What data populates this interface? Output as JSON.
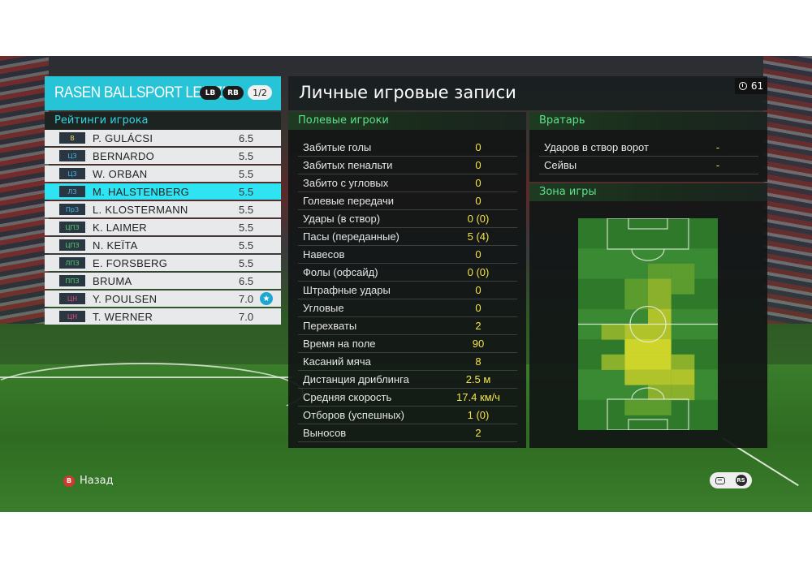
{
  "team": {
    "name": "RASEN BALLSPORT LEIPZIG",
    "lb_label": "LB",
    "rb_label": "RB",
    "page": "1/2"
  },
  "ratings_header": "Рейтинги игрока",
  "players": [
    {
      "pos": "В",
      "name": "P. GULÁCSI",
      "rating": "6.5",
      "pos_color": "#f2d24a"
    },
    {
      "pos": "ЦЗ",
      "name": "BERNARDO",
      "rating": "5.5",
      "pos_color": "#46b8e8"
    },
    {
      "pos": "ЦЗ",
      "name": "W. ORBAN",
      "rating": "5.5",
      "pos_color": "#46b8e8"
    },
    {
      "pos": "ЛЗ",
      "name": "M. HALSTENBERG",
      "rating": "5.5",
      "pos_color": "#46b8e8",
      "selected": true
    },
    {
      "pos": "ПрЗ",
      "name": "L. KLOSTERMANN",
      "rating": "5.5",
      "pos_color": "#46b8e8"
    },
    {
      "pos": "ЦПЗ",
      "name": "K. LAIMER",
      "rating": "5.5",
      "pos_color": "#4fd26a"
    },
    {
      "pos": "ЦПЗ",
      "name": "N. KEÏTA",
      "rating": "5.5",
      "pos_color": "#4fd26a"
    },
    {
      "pos": "ЛПЗ",
      "name": "E. FORSBERG",
      "rating": "5.5",
      "pos_color": "#4fd26a"
    },
    {
      "pos": "ППЗ",
      "name": "BRUMA",
      "rating": "6.5",
      "pos_color": "#4fd26a"
    },
    {
      "pos": "ЦН",
      "name": "Y. POULSEN",
      "rating": "7.0",
      "pos_color": "#e54a7a",
      "star": true
    },
    {
      "pos": "ЦН",
      "name": "T. WERNER",
      "rating": "7.0",
      "pos_color": "#e54a7a"
    }
  ],
  "main": {
    "title": "Личные игровые записи",
    "timer": "61"
  },
  "field_players": {
    "header": "Полевые игроки",
    "stats": [
      {
        "label": "Забитые голы",
        "value": "0"
      },
      {
        "label": "Забитых пенальти",
        "value": "0"
      },
      {
        "label": "Забито с угловых",
        "value": "0"
      },
      {
        "label": "Голевые передачи",
        "value": "0"
      },
      {
        "label": "Удары (в створ)",
        "value": "0 (0)"
      },
      {
        "label": "Пасы (переданные)",
        "value": "5 (4)"
      },
      {
        "label": "Навесов",
        "value": "0"
      },
      {
        "label": "Фолы (офсайд)",
        "value": "0 (0)"
      },
      {
        "label": "Штрафные удары",
        "value": "0"
      },
      {
        "label": "Угловые",
        "value": "0"
      },
      {
        "label": "Перехваты",
        "value": "2"
      },
      {
        "label": "Время на поле",
        "value": "90"
      },
      {
        "label": "Касаний мяча",
        "value": "8"
      },
      {
        "label": "Дистанция дриблинга",
        "value": "2.5 м"
      },
      {
        "label": "Средняя скорость",
        "value": "17.4 км/ч"
      },
      {
        "label": "Отборов (успешных)",
        "value": "1 (0)"
      },
      {
        "label": "Выносов",
        "value": "2"
      }
    ]
  },
  "goalkeeper": {
    "header": "Вратарь",
    "stats": [
      {
        "label": "Ударов в створ ворот",
        "value": "-"
      },
      {
        "label": "Сейвы",
        "value": "-"
      }
    ]
  },
  "zone": {
    "header": "Зона игры",
    "heat_cells": [
      {
        "col": 3,
        "row": 3,
        "level": 1
      },
      {
        "col": 4,
        "row": 3,
        "level": 1
      },
      {
        "col": 2,
        "row": 4,
        "level": 1
      },
      {
        "col": 3,
        "row": 4,
        "level": 2
      },
      {
        "col": 4,
        "row": 4,
        "level": 1
      },
      {
        "col": 2,
        "row": 5,
        "level": 1
      },
      {
        "col": 3,
        "row": 5,
        "level": 2
      },
      {
        "col": 3,
        "row": 6,
        "level": 3
      },
      {
        "col": 1,
        "row": 7,
        "level": 2
      },
      {
        "col": 2,
        "row": 7,
        "level": 3
      },
      {
        "col": 3,
        "row": 7,
        "level": 3
      },
      {
        "col": 2,
        "row": 8,
        "level": 4
      },
      {
        "col": 3,
        "row": 8,
        "level": 4
      },
      {
        "col": 1,
        "row": 9,
        "level": 2
      },
      {
        "col": 2,
        "row": 9,
        "level": 4
      },
      {
        "col": 3,
        "row": 9,
        "level": 4
      },
      {
        "col": 4,
        "row": 9,
        "level": 2
      },
      {
        "col": 2,
        "row": 10,
        "level": 3
      },
      {
        "col": 3,
        "row": 10,
        "level": 3
      },
      {
        "col": 4,
        "row": 10,
        "level": 3
      },
      {
        "col": 3,
        "row": 11,
        "level": 2
      },
      {
        "col": 4,
        "row": 11,
        "level": 2
      },
      {
        "col": 2,
        "row": 12,
        "level": 1
      },
      {
        "col": 3,
        "row": 12,
        "level": 1
      }
    ]
  },
  "footer": {
    "back_label": "Назад",
    "b_icon": "B",
    "rs_icon": "RS"
  }
}
